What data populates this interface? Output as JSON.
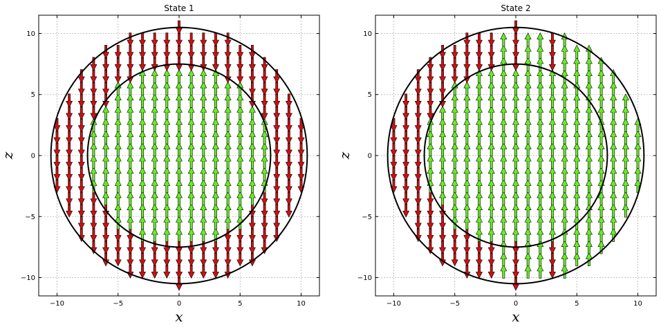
{
  "chart_data": [
    {
      "type": "quiver",
      "title": "State 1",
      "xlabel": "x",
      "ylabel": "z",
      "xlim": [
        -11.5,
        11.5
      ],
      "ylim": [
        -11.5,
        11.5
      ],
      "xticks": [
        -10,
        -5,
        0,
        5,
        10
      ],
      "yticks": [
        -10,
        -5,
        0,
        5,
        10
      ],
      "xtick_labels": [
        "−10",
        "−5",
        "0",
        "5",
        "10"
      ],
      "ytick_labels": [
        "−10",
        "−5",
        "0",
        "5",
        "10"
      ],
      "grid": true,
      "circle_radii": [
        7.5,
        10.5
      ],
      "lattice": {
        "x_min": -10,
        "x_max": 10,
        "x_step": 1,
        "z_min": -10.5,
        "z_max": 10.5,
        "z_step": 1
      },
      "up_arrow_color": "#66ee22",
      "down_arrow_color": "#cc1111",
      "rule": "up inside inner circle, down between circles"
    },
    {
      "type": "quiver",
      "title": "State 2",
      "xlabel": "x",
      "ylabel": "z",
      "xlim": [
        -11.5,
        11.5
      ],
      "ylim": [
        -11.5,
        11.5
      ],
      "xticks": [
        -10,
        -5,
        0,
        5,
        10
      ],
      "yticks": [
        -10,
        -5,
        0,
        5,
        10
      ],
      "xtick_labels": [
        "−10",
        "−5",
        "0",
        "5",
        "10"
      ],
      "ytick_labels": [
        "−10",
        "−5",
        "0",
        "5",
        "10"
      ],
      "grid": true,
      "circle_radii": [
        7.5,
        10.5
      ],
      "lattice": {
        "x_min": -10,
        "x_max": 10,
        "x_step": 1,
        "z_min": -10.5,
        "z_max": 10.5,
        "z_step": 1
      },
      "up_arrow_color": "#66ee22",
      "down_arrow_color": "#cc1111",
      "rule": "left half of shell down, right half of shell up, top and bottom caps mixed"
    }
  ]
}
